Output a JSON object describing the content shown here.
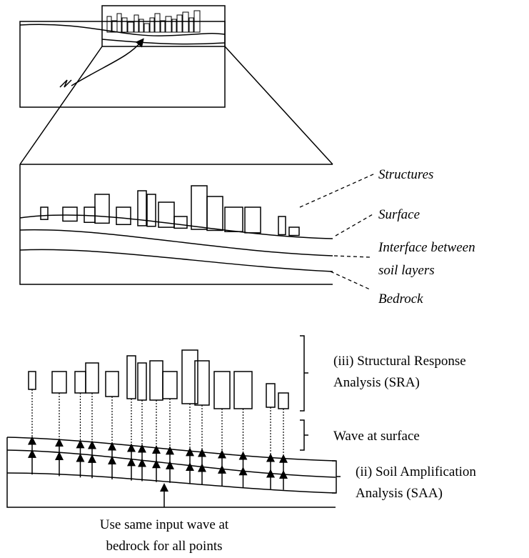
{
  "labels": {
    "structures": "Structures",
    "surface": "Surface",
    "interface": [
      "Interface between",
      "soil layers"
    ],
    "bedrock": "Bedrock"
  },
  "analysis": {
    "sra": [
      "(iii) Structural Response",
      "Analysis (SRA)"
    ],
    "wave_surface": "Wave at surface",
    "saa": [
      "(ii) Soil Amplification",
      "Analysis (SAA)"
    ]
  },
  "caption": [
    "Use same input wave at",
    "bedrock for all points"
  ]
}
